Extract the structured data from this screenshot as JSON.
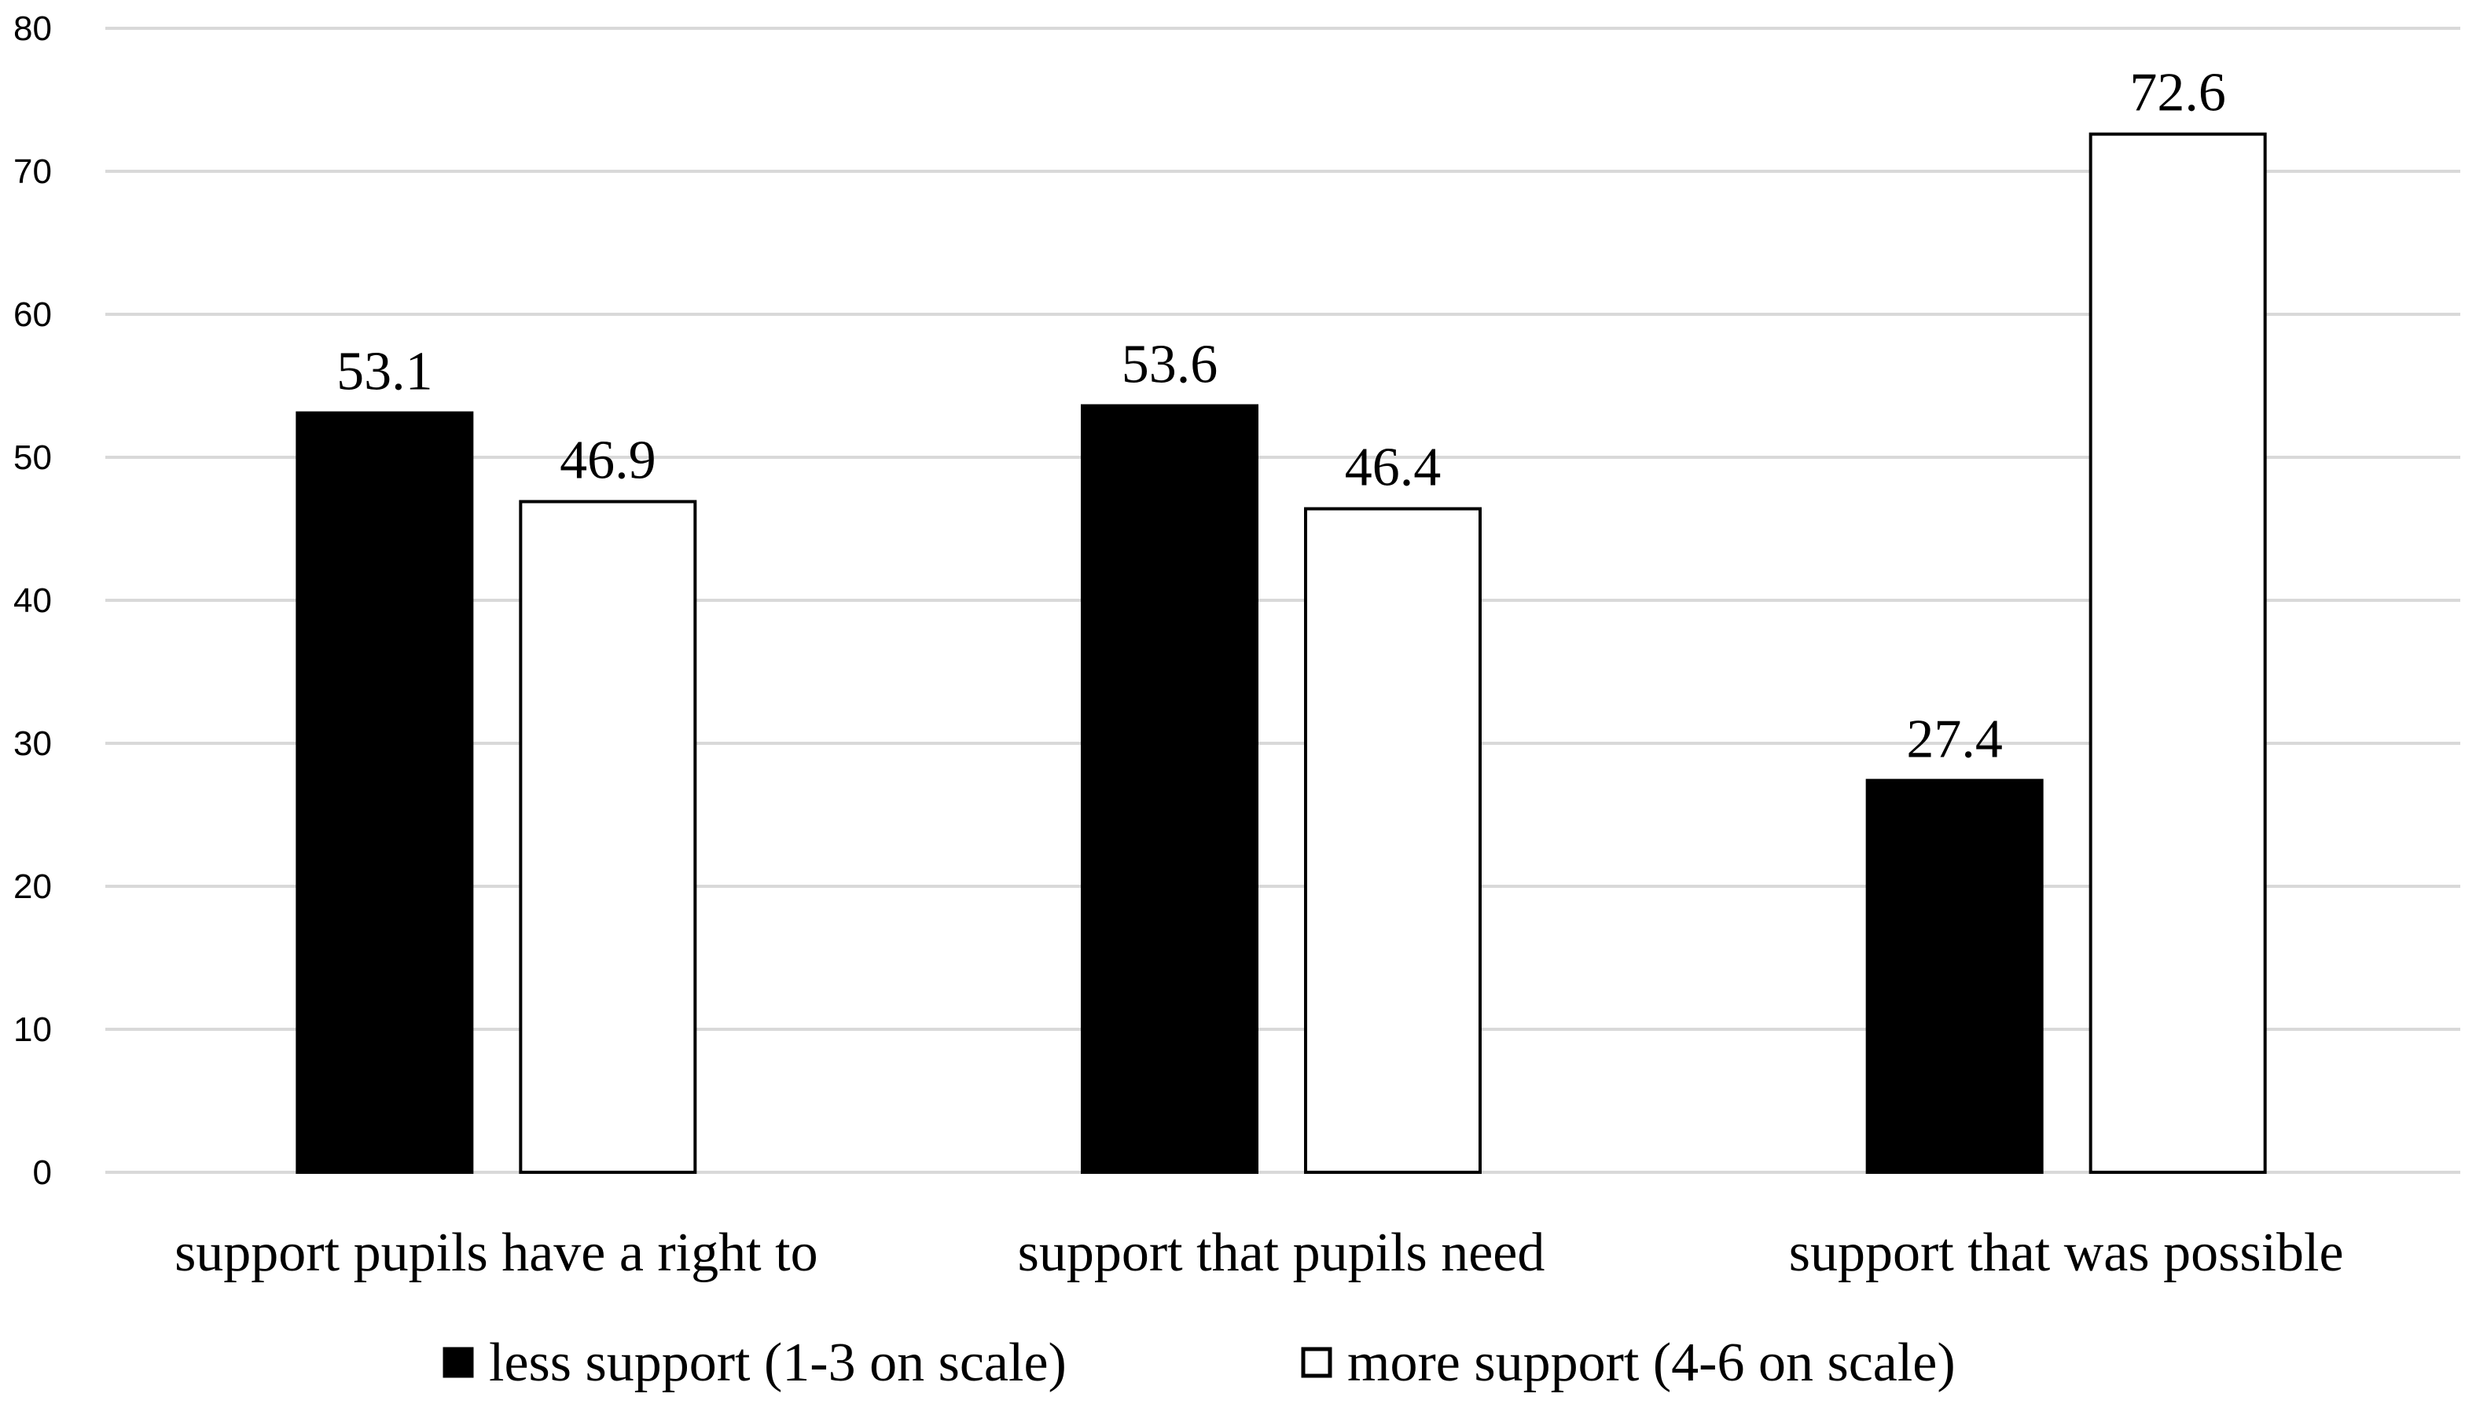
{
  "chart_data": {
    "type": "bar",
    "categories": [
      "support pupils have a right to",
      "support that pupils need",
      "support that was possible"
    ],
    "series": [
      {
        "name": "less support (1-3 on scale)",
        "values": [
          53.1,
          53.6,
          27.4
        ],
        "color": "#000000"
      },
      {
        "name": "more support (4-6 on scale)",
        "values": [
          46.9,
          46.4,
          72.6
        ],
        "color": "#ffffff"
      }
    ],
    "ylim": [
      0,
      80
    ],
    "yticks": [
      0,
      10,
      20,
      30,
      40,
      50,
      60,
      70,
      80
    ],
    "grid": true,
    "legend": "bottom",
    "data_labels": true
  }
}
